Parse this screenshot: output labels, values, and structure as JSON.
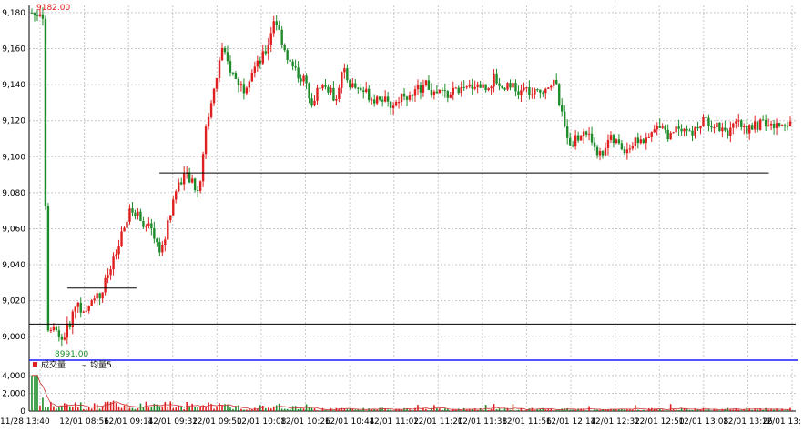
{
  "chart_data": {
    "type": "candlestick",
    "price_axis": {
      "ticks": [
        "9,180",
        "9,160",
        "9,140",
        "9,120",
        "9,100",
        "9,080",
        "9,060",
        "9,040",
        "9,020",
        "9,000"
      ],
      "ylim": [
        8988,
        9184
      ]
    },
    "volume_axis": {
      "ticks": [
        "4,000",
        "2,000",
        "0"
      ],
      "ylim": [
        0,
        4500
      ]
    },
    "time_axis": {
      "ticks": [
        "11/28 13:40",
        "12/01 08:56",
        "12/01 09:14",
        "12/01 09:32",
        "12/01 09:50",
        "12/01 10:08",
        "12/01 10:26",
        "12/01 10:44",
        "12/01 11:02",
        "12/01 11:20",
        "12/01 11:38",
        "12/01 11:56",
        "12/01 12:14",
        "12/01 12:32",
        "12/01 12:50",
        "12/01 13:08",
        "12/01 13:26",
        "12/01 13:"
      ]
    },
    "annotations": {
      "high_label": "9182.00",
      "low_label": "8991.00"
    },
    "horizontal_lines": [
      {
        "price": 9162,
        "from_frac": 0.24,
        "to_frac": 1.0
      },
      {
        "price": 9091,
        "from_frac": 0.17,
        "to_frac": 0.965
      },
      {
        "price": 9027,
        "from_frac": 0.05,
        "to_frac": 0.14
      },
      {
        "price": 9007,
        "from_frac": 0.0,
        "to_frac": 1.0
      }
    ],
    "volume_legend": {
      "volume": "成交量",
      "separator": "–",
      "ma": "均量5"
    },
    "price_path": [
      [
        0,
        9180
      ],
      [
        0.005,
        9178
      ],
      [
        0.01,
        9181
      ],
      [
        0.015,
        9179
      ],
      [
        0.02,
        9000
      ],
      [
        0.03,
        9004
      ],
      [
        0.04,
        8998
      ],
      [
        0.05,
        9008
      ],
      [
        0.06,
        9020
      ],
      [
        0.07,
        9010
      ],
      [
        0.08,
        9024
      ],
      [
        0.09,
        9022
      ],
      [
        0.1,
        9034
      ],
      [
        0.11,
        9044
      ],
      [
        0.12,
        9058
      ],
      [
        0.13,
        9070
      ],
      [
        0.14,
        9068
      ],
      [
        0.15,
        9062
      ],
      [
        0.16,
        9058
      ],
      [
        0.17,
        9046
      ],
      [
        0.18,
        9064
      ],
      [
        0.19,
        9082
      ],
      [
        0.2,
        9090
      ],
      [
        0.21,
        9086
      ],
      [
        0.22,
        9080
      ],
      [
        0.23,
        9118
      ],
      [
        0.24,
        9136
      ],
      [
        0.25,
        9160
      ],
      [
        0.26,
        9150
      ],
      [
        0.27,
        9142
      ],
      [
        0.28,
        9138
      ],
      [
        0.29,
        9148
      ],
      [
        0.3,
        9152
      ],
      [
        0.31,
        9160
      ],
      [
        0.32,
        9178
      ],
      [
        0.33,
        9164
      ],
      [
        0.34,
        9152
      ],
      [
        0.35,
        9146
      ],
      [
        0.36,
        9142
      ],
      [
        0.37,
        9130
      ],
      [
        0.38,
        9140
      ],
      [
        0.39,
        9138
      ],
      [
        0.4,
        9132
      ],
      [
        0.41,
        9148
      ],
      [
        0.42,
        9140
      ],
      [
        0.43,
        9138
      ],
      [
        0.44,
        9136
      ],
      [
        0.45,
        9132
      ],
      [
        0.46,
        9134
      ],
      [
        0.47,
        9128
      ],
      [
        0.48,
        9130
      ],
      [
        0.49,
        9136
      ],
      [
        0.5,
        9132
      ],
      [
        0.51,
        9138
      ],
      [
        0.52,
        9140
      ],
      [
        0.53,
        9134
      ],
      [
        0.54,
        9136
      ],
      [
        0.55,
        9134
      ],
      [
        0.56,
        9138
      ],
      [
        0.57,
        9136
      ],
      [
        0.58,
        9140
      ],
      [
        0.59,
        9140
      ],
      [
        0.6,
        9138
      ],
      [
        0.61,
        9144
      ],
      [
        0.62,
        9138
      ],
      [
        0.63,
        9142
      ],
      [
        0.64,
        9134
      ],
      [
        0.65,
        9138
      ],
      [
        0.66,
        9134
      ],
      [
        0.67,
        9136
      ],
      [
        0.68,
        9140
      ],
      [
        0.69,
        9142
      ],
      [
        0.7,
        9120
      ],
      [
        0.71,
        9108
      ],
      [
        0.72,
        9110
      ],
      [
        0.73,
        9114
      ],
      [
        0.74,
        9108
      ],
      [
        0.75,
        9100
      ],
      [
        0.76,
        9110
      ],
      [
        0.77,
        9108
      ],
      [
        0.78,
        9104
      ],
      [
        0.79,
        9106
      ],
      [
        0.8,
        9110
      ],
      [
        0.81,
        9108
      ],
      [
        0.82,
        9114
      ],
      [
        0.83,
        9120
      ],
      [
        0.84,
        9110
      ],
      [
        0.85,
        9118
      ],
      [
        0.86,
        9116
      ],
      [
        0.87,
        9112
      ],
      [
        0.88,
        9118
      ],
      [
        0.89,
        9120
      ],
      [
        0.9,
        9118
      ],
      [
        0.91,
        9116
      ],
      [
        0.92,
        9114
      ],
      [
        0.93,
        9118
      ],
      [
        0.94,
        9116
      ],
      [
        0.95,
        9116
      ],
      [
        0.96,
        9118
      ],
      [
        0.97,
        9118
      ],
      [
        0.98,
        9116
      ],
      [
        1.0,
        9120
      ]
    ]
  },
  "colors": {
    "up": "#e02020",
    "down": "#1e8c2a",
    "grid": "#c8c8c8",
    "divider": "#1a1aff",
    "line": "#000000",
    "ma": "#cc3333"
  }
}
